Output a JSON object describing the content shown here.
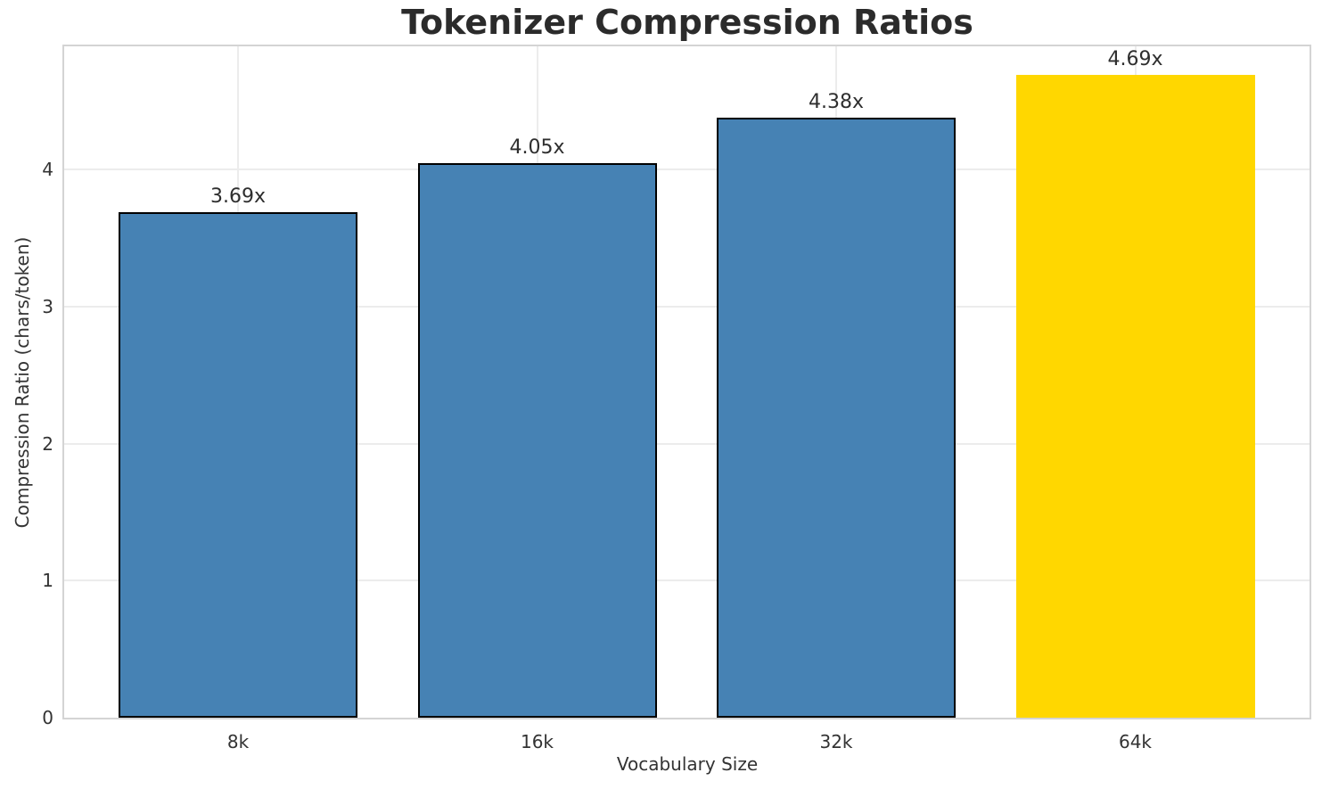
{
  "chart_data": {
    "type": "bar",
    "title": "Tokenizer Compression Ratios",
    "xlabel": "Vocabulary Size",
    "ylabel": "Compression Ratio (chars/token)",
    "categories": [
      "8k",
      "16k",
      "32k",
      "64k"
    ],
    "values": [
      3.69,
      4.05,
      4.38,
      4.69
    ],
    "bar_labels": [
      "3.69x",
      "4.05x",
      "4.38x",
      "4.69x"
    ],
    "yticks": [
      0,
      1,
      2,
      3,
      4
    ],
    "ylim": [
      0,
      4.9
    ],
    "grid": true,
    "legend": false,
    "bar_colors": [
      "#4682B4",
      "#4682B4",
      "#4682B4",
      "#FFD700"
    ],
    "bar_edge_colors": [
      "#000000",
      "#000000",
      "#000000",
      "none"
    ],
    "highlight_index": 3,
    "colors": {
      "grid": "#ececec",
      "spine": "#d4d4d4",
      "title_text": "#2b2b2b",
      "label_text": "#333333",
      "bar_blue": "#4682B4",
      "bar_gold": "#FFD700"
    }
  }
}
